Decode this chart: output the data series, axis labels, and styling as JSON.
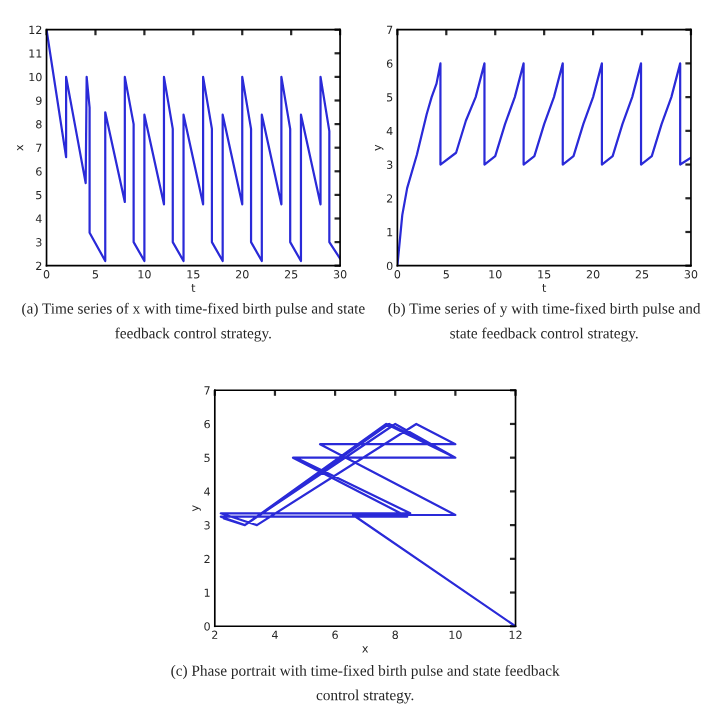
{
  "chart_data": [
    {
      "type": "line",
      "xlabel": "t",
      "ylabel": "x",
      "xlim": [
        0,
        30
      ],
      "xticks": [
        0,
        5,
        10,
        15,
        20,
        25,
        30
      ],
      "ylim": [
        2,
        12
      ],
      "yticks": [
        2,
        3,
        4,
        5,
        6,
        7,
        8,
        9,
        10,
        11,
        12
      ],
      "grid": false,
      "legend": false,
      "annotations": [
        "(a) Time series of x with time-fixed birth pulse and state feedback control strategy."
      ],
      "series": [
        {
          "color": "#2a2ad8",
          "x": [
            0,
            2,
            2,
            4,
            4.1,
            4.4,
            4.4,
            6,
            6,
            8,
            8,
            8.9,
            8.9,
            10,
            10,
            12,
            12,
            12.9,
            12.9,
            14,
            14,
            16,
            16,
            16.9,
            16.9,
            18,
            18,
            20,
            20,
            20.9,
            20.9,
            22,
            22,
            24,
            24,
            24.9,
            24.9,
            26,
            26,
            28,
            28,
            28.9,
            28.9,
            30
          ],
          "values": [
            12,
            6.6,
            10,
            5.5,
            10,
            8.7,
            3.4,
            2.2,
            8.5,
            4.7,
            10,
            8.0,
            3.0,
            2.2,
            8.4,
            4.6,
            10,
            7.8,
            3.0,
            2.2,
            8.4,
            4.6,
            10,
            7.8,
            3.0,
            2.2,
            8.4,
            4.6,
            10,
            7.8,
            3.0,
            2.2,
            8.4,
            4.6,
            10,
            7.8,
            3.0,
            2.2,
            8.4,
            4.6,
            10,
            7.7,
            3.0,
            2.3
          ]
        }
      ]
    },
    {
      "type": "line",
      "xlabel": "t",
      "ylabel": "y",
      "xlim": [
        0,
        30
      ],
      "xticks": [
        0,
        5,
        10,
        15,
        20,
        25,
        30
      ],
      "ylim": [
        0,
        7
      ],
      "yticks": [
        0,
        1,
        2,
        3,
        4,
        5,
        6,
        7
      ],
      "grid": false,
      "legend": false,
      "annotations": [
        "(b) Time series of y with time-fixed birth pulse and state feedback control strategy."
      ],
      "series": [
        {
          "color": "#2a2ad8",
          "x": [
            0,
            0.5,
            1,
            2,
            3,
            3.5,
            4,
            4.4,
            4.4,
            6,
            7,
            8,
            8.9,
            8.9,
            10,
            11,
            12,
            12.9,
            12.9,
            14,
            15,
            16,
            16.9,
            16.9,
            18,
            19,
            20,
            20.9,
            20.9,
            22,
            23,
            24,
            24.9,
            24.9,
            26,
            27,
            28,
            28.9,
            28.9,
            30
          ],
          "values": [
            0,
            1.5,
            2.3,
            3.3,
            4.5,
            5.0,
            5.4,
            6.0,
            3.0,
            3.35,
            4.3,
            5.0,
            6.0,
            3.0,
            3.25,
            4.2,
            5.0,
            6.0,
            3.0,
            3.25,
            4.2,
            5.0,
            6.0,
            3.0,
            3.25,
            4.2,
            5.0,
            6.0,
            3.0,
            3.25,
            4.2,
            5.0,
            6.0,
            3.0,
            3.25,
            4.2,
            5.0,
            6.0,
            3.0,
            3.2
          ]
        }
      ]
    },
    {
      "type": "line",
      "xlabel": "x",
      "ylabel": "y",
      "xlim": [
        2,
        12
      ],
      "xticks": [
        2,
        4,
        6,
        8,
        10,
        12
      ],
      "ylim": [
        0,
        7
      ],
      "yticks": [
        0,
        1,
        2,
        3,
        4,
        5,
        6,
        7
      ],
      "grid": false,
      "legend": false,
      "annotations": [
        "(c) Phase portrait with time-fixed birth pulse and state feedback control strategy."
      ],
      "series": [
        {
          "color": "#2a2ad8",
          "x": [
            12,
            6.6,
            10,
            5.5,
            10,
            8.7,
            3.4,
            2.2,
            8.5,
            4.7,
            10,
            8.0,
            3.0,
            2.2,
            8.4,
            4.6,
            10,
            7.8,
            3.0,
            2.2,
            8.4,
            4.6,
            10,
            7.8,
            3.0,
            2.2,
            8.4,
            4.6,
            10,
            7.8,
            3.0,
            2.2,
            8.4,
            4.6,
            10,
            7.8,
            3.0,
            2.2,
            8.4,
            4.6,
            10,
            7.7,
            3.0,
            2.3
          ],
          "values": [
            0,
            3.3,
            3.3,
            5.4,
            5.4,
            6.0,
            3.0,
            3.35,
            3.35,
            5.0,
            5.0,
            6.0,
            3.0,
            3.25,
            3.25,
            5.0,
            5.0,
            6.0,
            3.0,
            3.25,
            3.25,
            5.0,
            5.0,
            6.0,
            3.0,
            3.25,
            3.25,
            5.0,
            5.0,
            6.0,
            3.0,
            3.25,
            3.25,
            5.0,
            5.0,
            6.0,
            3.0,
            3.25,
            3.25,
            5.0,
            5.0,
            6.0,
            3.0,
            3.2
          ]
        }
      ]
    }
  ]
}
